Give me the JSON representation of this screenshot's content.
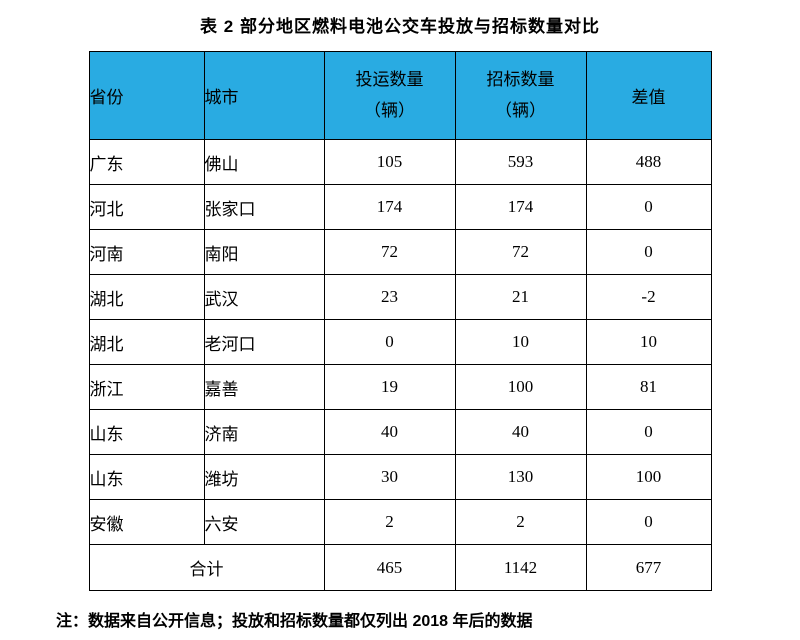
{
  "title": "表 2 部分地区燃料电池公交车投放与招标数量对比",
  "colors": {
    "header_bg": "#29ABE2"
  },
  "table": {
    "header": {
      "province": "省份",
      "city": "城市",
      "deploy_line1": "投运数量",
      "deploy_line2": "（辆）",
      "tender_line1": "招标数量",
      "tender_line2": "（辆）",
      "diff": "差值"
    },
    "rows": [
      {
        "province": "广东",
        "city": "佛山",
        "deployed": "105",
        "tendered": "593",
        "diff": "488"
      },
      {
        "province": "河北",
        "city": "张家口",
        "deployed": "174",
        "tendered": "174",
        "diff": "0"
      },
      {
        "province": "河南",
        "city": "南阳",
        "deployed": "72",
        "tendered": "72",
        "diff": "0"
      },
      {
        "province": "湖北",
        "city": "武汉",
        "deployed": "23",
        "tendered": "21",
        "diff": "-2"
      },
      {
        "province": "湖北",
        "city": "老河口",
        "deployed": "0",
        "tendered": "10",
        "diff": "10"
      },
      {
        "province": "浙江",
        "city": "嘉善",
        "deployed": "19",
        "tendered": "100",
        "diff": "81"
      },
      {
        "province": "山东",
        "city": "济南",
        "deployed": "40",
        "tendered": "40",
        "diff": "0"
      },
      {
        "province": "山东",
        "city": "潍坊",
        "deployed": "30",
        "tendered": "130",
        "diff": "100"
      },
      {
        "province": "安徽",
        "city": "六安",
        "deployed": "2",
        "tendered": "2",
        "diff": "0"
      }
    ],
    "total": {
      "label": "合计",
      "deployed": "465",
      "tendered": "1142",
      "diff": "677"
    }
  },
  "note": "注：数据来自公开信息；投放和招标数量都仅列出 2018 年后的数据"
}
